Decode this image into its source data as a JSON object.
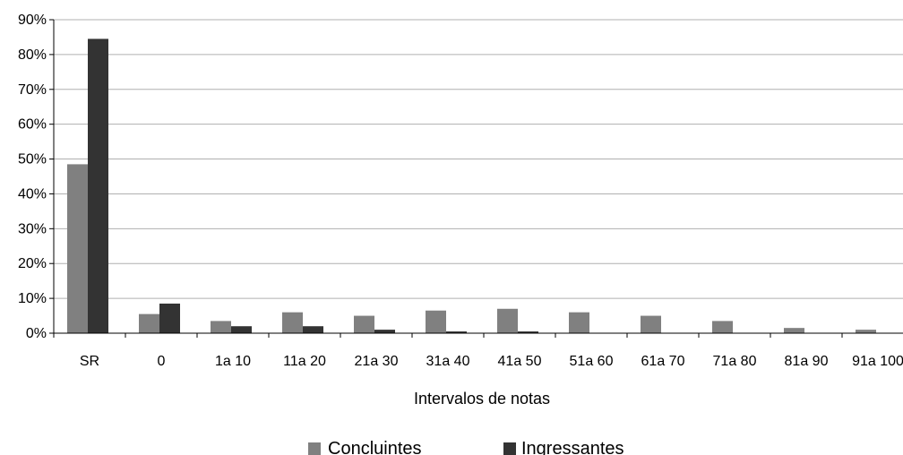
{
  "chart_data": {
    "type": "bar",
    "categories": [
      "SR",
      "0",
      "1a 10",
      "11a 20",
      "21a 30",
      "31a 40",
      "41a 50",
      "51a 60",
      "61a 70",
      "71a 80",
      "81a 90",
      "91a 100"
    ],
    "series": [
      {
        "name": "Concluintes",
        "color": "#808080",
        "values": [
          48.5,
          5.5,
          3.5,
          6.0,
          5.0,
          6.5,
          7.0,
          6.0,
          5.0,
          3.5,
          1.5,
          1.0
        ]
      },
      {
        "name": "Ingressantes",
        "color": "#333333",
        "values": [
          84.5,
          8.5,
          2.0,
          2.0,
          1.0,
          0.5,
          0.5,
          0,
          0,
          0,
          0,
          0
        ]
      }
    ],
    "y_ticks": [
      "0%",
      "10%",
      "20%",
      "30%",
      "40%",
      "50%",
      "60%",
      "70%",
      "80%",
      "90%"
    ],
    "ylim": [
      0,
      90
    ],
    "y_unit": "%",
    "xlabel": "Intervalos de notas",
    "ylabel": "",
    "grid": true,
    "legend_position": "bottom"
  }
}
